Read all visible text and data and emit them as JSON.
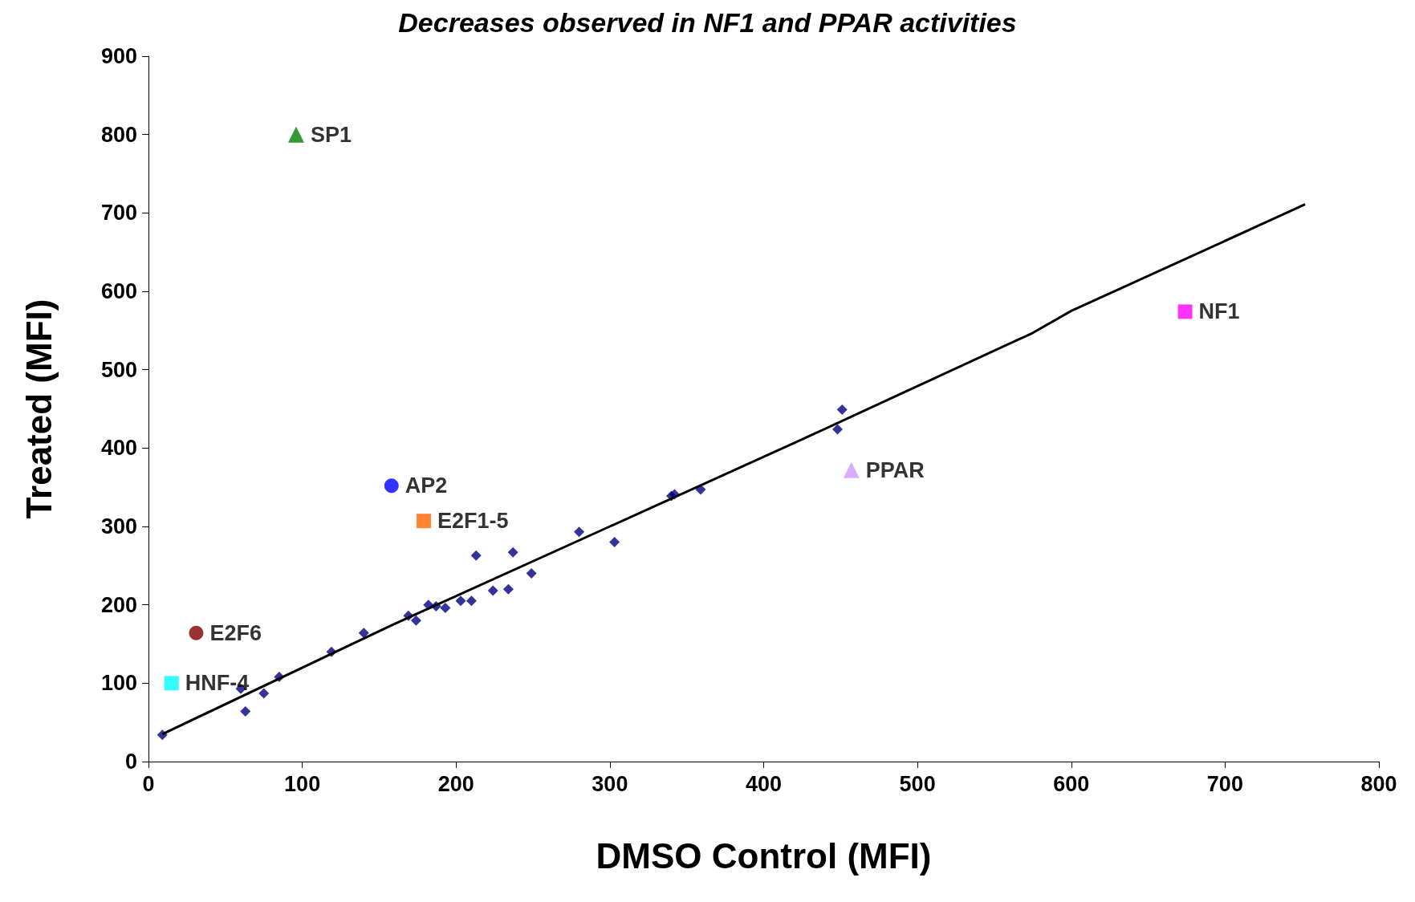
{
  "chart_data": {
    "type": "scatter",
    "title": "Decreases observed in NF1 and PPAR activities",
    "xlabel": "DMSO Control (MFI)",
    "ylabel": "Treated (MFI)",
    "xlim": [
      0,
      800
    ],
    "xticks": [
      0,
      100,
      200,
      300,
      400,
      500,
      600,
      700,
      800
    ],
    "ylim": [
      0,
      900
    ],
    "yticks": [
      0,
      100,
      200,
      300,
      400,
      500,
      600,
      700,
      800,
      900
    ],
    "grid": false,
    "legend": false,
    "series": [
      {
        "color": "#000080",
        "marker": "diamond",
        "x": [
          9,
          60,
          63,
          75,
          85,
          119,
          140,
          169,
          174,
          182,
          187,
          193,
          203,
          210,
          213,
          224,
          234,
          237,
          249,
          280,
          303,
          340,
          342,
          359,
          448,
          451
        ],
        "values": [
          34,
          93,
          64,
          87,
          108,
          140,
          164,
          186,
          180,
          200,
          198,
          196,
          205,
          205,
          263,
          218,
          220,
          267,
          240,
          293,
          280,
          339,
          341,
          347,
          424,
          449
        ]
      },
      {
        "type": "line",
        "color": "#000000",
        "marker": "none",
        "x": [
          9,
          157,
          300,
          426,
          575,
          600,
          722,
          752
        ],
        "values": [
          35,
          173,
          300,
          412,
          547,
          575,
          684,
          711
        ]
      },
      {
        "name": "SP1",
        "color": "#008000",
        "marker": "triangle",
        "x": [
          96
        ],
        "values": [
          800
        ]
      },
      {
        "name": "AP2",
        "color": "#0000ff",
        "marker": "circle",
        "x": [
          158
        ],
        "values": [
          352
        ]
      },
      {
        "name": "E2F1-5",
        "color": "#ff6600",
        "marker": "square",
        "x": [
          179
        ],
        "values": [
          307
        ]
      },
      {
        "name": "E2F6",
        "color": "#800000",
        "marker": "circle",
        "x": [
          31
        ],
        "values": [
          164
        ]
      },
      {
        "name": "HNF-4",
        "color": "#00ffff",
        "marker": "square",
        "x": [
          15
        ],
        "values": [
          100
        ]
      },
      {
        "name": "NF1",
        "color": "#ff00ff",
        "marker": "square",
        "x": [
          674
        ],
        "values": [
          574
        ]
      },
      {
        "name": "PPAR",
        "color": "#cc99ff",
        "marker": "triangle",
        "x": [
          457
        ],
        "values": [
          372
        ]
      }
    ]
  }
}
